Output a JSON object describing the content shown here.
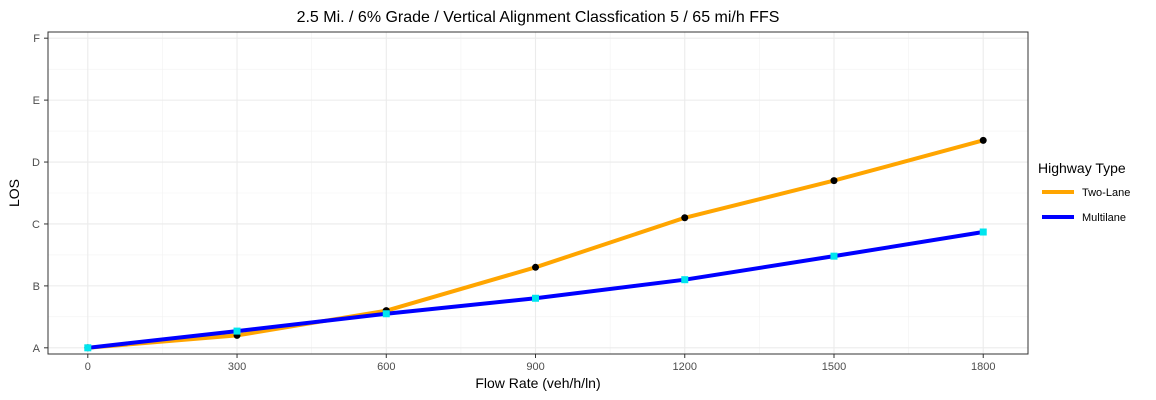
{
  "chart_data": {
    "type": "line",
    "title": "2.5 Mi. / 6% Grade / Vertical Alignment Classfication 5 / 65 mi/h FFS",
    "xlabel": "Flow Rate (veh/h/ln)",
    "ylabel": "LOS",
    "x": [
      0,
      300,
      600,
      900,
      1200,
      1500,
      1800
    ],
    "xlim": [
      -80,
      1890
    ],
    "ylim": [
      0.9,
      6.1
    ],
    "x_ticks": [
      0,
      300,
      600,
      900,
      1200,
      1500,
      1800
    ],
    "x_tick_labels": [
      "0",
      "300",
      "600",
      "900",
      "1200",
      "1500",
      "1800"
    ],
    "y_ticks": [
      1,
      2,
      3,
      4,
      5,
      6
    ],
    "y_tick_labels": [
      "A",
      "B",
      "C",
      "D",
      "E",
      "F"
    ],
    "grid": true,
    "legend_title": "Highway Type",
    "legend_position": "right",
    "series": [
      {
        "name": "Two-Lane",
        "color": "#FFA500",
        "marker_color": "#000000",
        "marker": "circle",
        "values": [
          1.0,
          1.2,
          1.6,
          2.3,
          3.1,
          3.7,
          4.35
        ]
      },
      {
        "name": "Multilane",
        "color": "#0000FF",
        "marker_color": "#00E5EE",
        "marker": "square",
        "values": [
          1.0,
          1.27,
          1.55,
          1.8,
          2.1,
          2.48,
          2.87
        ]
      }
    ]
  }
}
